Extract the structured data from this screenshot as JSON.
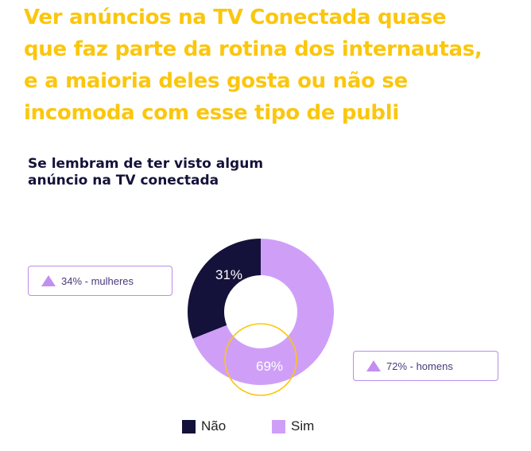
{
  "headline": {
    "lines": [
      "Ver anúncios na TV Conectada quase",
      "que faz parte da rotina dos internautas,",
      "e a maioria deles gosta ou não se",
      "incomoda com esse tipo de publi"
    ]
  },
  "chart_data": {
    "type": "pie",
    "title_lines": [
      "Se lembram de ter visto algum",
      "anúncio na TV conectada"
    ],
    "slices": [
      {
        "label": "Não",
        "value": 31,
        "display": "31%",
        "color": "#14123a"
      },
      {
        "label": "Sim",
        "value": 69,
        "display": "69%",
        "color": "#cf9ff8"
      }
    ],
    "donut": true,
    "highlight_ring_color": "#fbc60d",
    "legend_placement": "bottom"
  },
  "callouts": {
    "women": "34% - mulheres",
    "men": "72% - homens"
  }
}
